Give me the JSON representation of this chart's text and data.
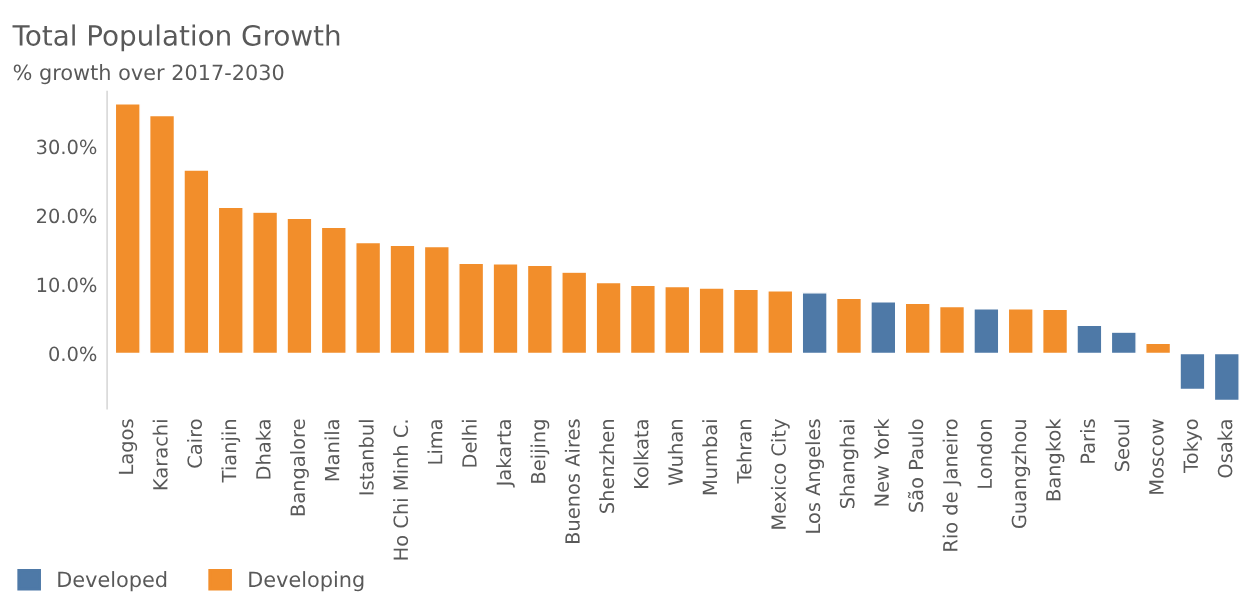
{
  "chart_data": {
    "type": "bar",
    "title": "Total Population Growth",
    "subtitle": "% growth over 2017-2030",
    "categories": [
      "Lagos",
      "Karachi",
      "Cairo",
      "Tianjin",
      "Dhaka",
      "Bangalore",
      "Manila",
      "Istanbul",
      "Ho Chi Minh C.",
      "Lima",
      "Delhi",
      "Jakarta",
      "Beijing",
      "Buenos Aires",
      "Shenzhen",
      "Kolkata",
      "Wuhan",
      "Mumbai",
      "Tehran",
      "Mexico City",
      "Los Angeles",
      "Shanghai",
      "New York",
      "São Paulo",
      "Rio de Janeiro",
      "London",
      "Guangzhou",
      "Bangkok",
      "Paris",
      "Seoul",
      "Moscow",
      "Tokyo",
      "Osaka"
    ],
    "series": [
      {
        "name": "Developed",
        "color": "#4e79a7",
        "values": [
          null,
          null,
          null,
          null,
          null,
          null,
          null,
          null,
          null,
          null,
          null,
          null,
          null,
          null,
          null,
          null,
          null,
          null,
          null,
          null,
          8.8,
          null,
          7.5,
          null,
          null,
          6.5,
          null,
          null,
          4.1,
          3.1,
          null,
          -5.2,
          -6.8
        ]
      },
      {
        "name": "Developing",
        "color": "#f28e2b",
        "values": [
          36.2,
          34.5,
          26.6,
          21.2,
          20.5,
          19.6,
          18.3,
          16.1,
          15.7,
          15.5,
          13.1,
          13.0,
          12.8,
          11.8,
          10.3,
          9.9,
          9.7,
          9.5,
          9.3,
          9.1,
          null,
          8.0,
          null,
          7.3,
          6.8,
          null,
          6.5,
          6.4,
          null,
          null,
          1.5,
          null,
          null
        ]
      }
    ],
    "ylim": [
      -8,
      38
    ],
    "yticks": [
      {
        "value": 0,
        "label": "0.0%"
      },
      {
        "value": 10,
        "label": "10.0%"
      },
      {
        "value": 20,
        "label": "20.0%"
      },
      {
        "value": 30,
        "label": "30.0%"
      }
    ],
    "grid": false,
    "legend": "bottom left"
  }
}
